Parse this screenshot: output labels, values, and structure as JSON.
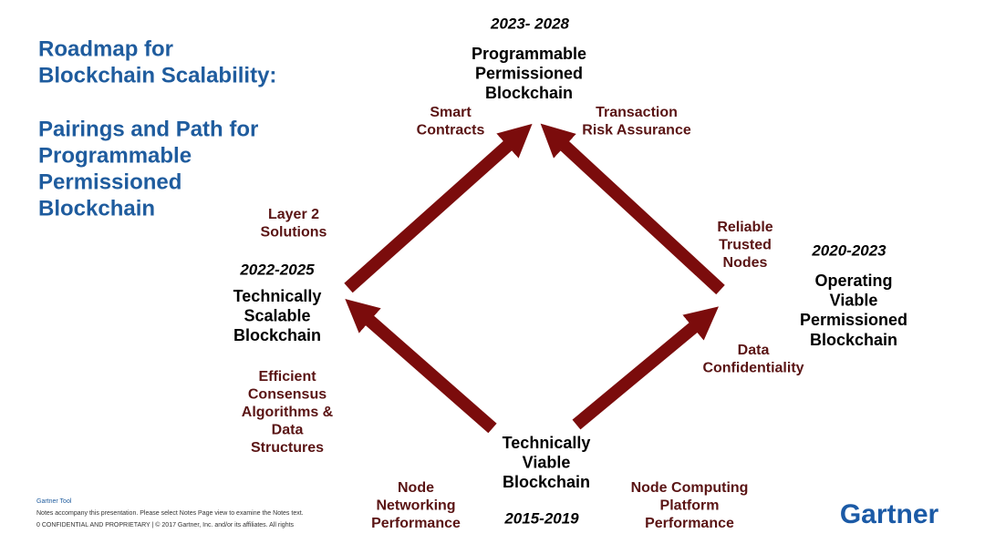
{
  "title": [
    "Roadmap for",
    "Blockchain Scalability:"
  ],
  "subtitle": [
    "Pairings and Path for",
    "Programmable",
    "Permissioned",
    "Blockchain"
  ],
  "nodes": [
    {
      "period": "2023- 2028",
      "label": [
        "Programmable",
        "Permissioned",
        "Blockchain"
      ]
    },
    {
      "period": "2022-2025",
      "label": [
        "Technically",
        "Scalable",
        "Blockchain"
      ]
    },
    {
      "period": "2020-2023",
      "label": [
        "Operating",
        "Viable",
        "Permissioned",
        "Blockchain"
      ]
    },
    {
      "period": "2015-2019",
      "label": [
        "Technically",
        "Viable",
        "Blockchain"
      ]
    }
  ],
  "pairings": [
    {
      "label": [
        "Smart",
        "Contracts"
      ]
    },
    {
      "label": [
        "Transaction",
        "Risk Assurance"
      ]
    },
    {
      "label": [
        "Layer 2",
        "Solutions"
      ]
    },
    {
      "label": [
        "Reliable",
        "Trusted",
        "Nodes"
      ]
    },
    {
      "label": [
        "Data",
        "Confidentiality"
      ]
    },
    {
      "label": [
        "Efficient",
        "Consensus",
        "Algorithms  &",
        "Data",
        "Structures"
      ]
    },
    {
      "label": [
        "Node",
        "Networking",
        "Performance"
      ]
    },
    {
      "label": [
        "Node Computing",
        "Platform",
        "Performance"
      ]
    }
  ],
  "footer": {
    "source": "Gartner Tool",
    "note": "Notes accompany this presentation. Please select Notes Page view to examine the Notes text.",
    "legal": "0     CONFIDENTIAL AND PROPRIETARY   |   © 2017 Gartner, Inc. and/or its affiliates. All rights"
  },
  "logo": "Gartner"
}
